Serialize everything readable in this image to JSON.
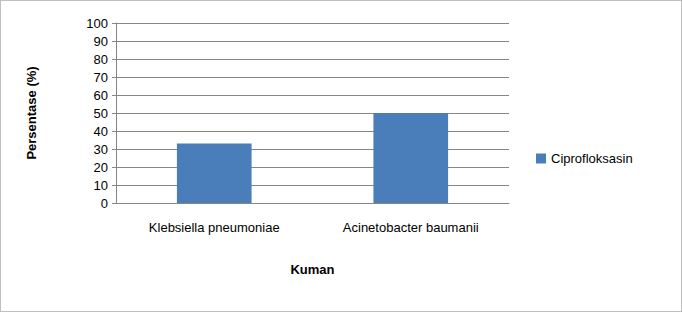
{
  "chart_data": {
    "type": "bar",
    "x_label": "Kuman",
    "y_label": "Persentase (%)",
    "categories": [
      "Klebsiella pneumoniae",
      "Acinetobacter baumanii"
    ],
    "series": [
      {
        "name": "Ciprofloksasin",
        "color": "#4a7ebb",
        "values": [
          33,
          50
        ]
      }
    ],
    "ylim": [
      0,
      100
    ],
    "yticks": [
      0,
      10,
      20,
      30,
      40,
      50,
      60,
      70,
      80,
      90,
      100
    ],
    "grid": true,
    "legend": "right"
  }
}
